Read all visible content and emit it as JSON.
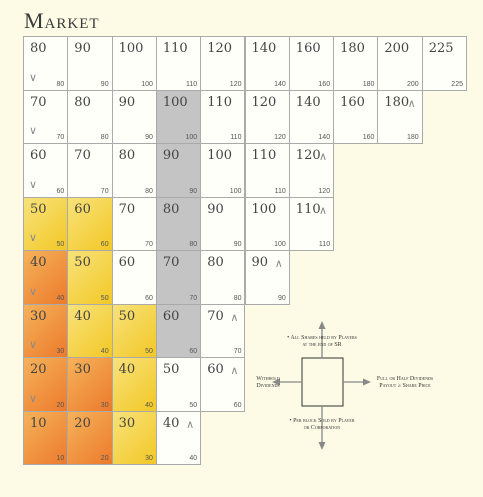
{
  "title": "Market",
  "rows": [
    [
      {
        "price": "80",
        "small": "80",
        "color": "white",
        "arrow": "down"
      },
      {
        "price": "90",
        "small": "90",
        "color": "white"
      },
      {
        "price": "100",
        "small": "100",
        "color": "white"
      },
      {
        "price": "110",
        "small": "110",
        "color": "white"
      },
      {
        "price": "120",
        "small": "120",
        "color": "white"
      },
      {
        "price": "140",
        "small": "140",
        "color": "white"
      },
      {
        "price": "160",
        "small": "160",
        "color": "white"
      },
      {
        "price": "180",
        "small": "180",
        "color": "white"
      },
      {
        "price": "200",
        "small": "200",
        "color": "white"
      },
      {
        "price": "225",
        "small": "225",
        "color": "white"
      }
    ],
    [
      {
        "price": "70",
        "small": "70",
        "color": "white",
        "arrow": "down"
      },
      {
        "price": "80",
        "small": "80",
        "color": "white"
      },
      {
        "price": "90",
        "small": "90",
        "color": "white"
      },
      {
        "price": "100",
        "small": "100",
        "color": "gray"
      },
      {
        "price": "110",
        "small": "110",
        "color": "white"
      },
      {
        "price": "120",
        "small": "120",
        "color": "white"
      },
      {
        "price": "140",
        "small": "140",
        "color": "white"
      },
      {
        "price": "160",
        "small": "160",
        "color": "white"
      },
      {
        "price": "180",
        "small": "180",
        "color": "white",
        "arrow": "up"
      }
    ],
    [
      {
        "price": "60",
        "small": "60",
        "color": "white",
        "arrow": "down"
      },
      {
        "price": "70",
        "small": "70",
        "color": "white"
      },
      {
        "price": "80",
        "small": "80",
        "color": "white"
      },
      {
        "price": "90",
        "small": "90",
        "color": "gray"
      },
      {
        "price": "100",
        "small": "100",
        "color": "white"
      },
      {
        "price": "110",
        "small": "110",
        "color": "white"
      },
      {
        "price": "120",
        "small": "120",
        "color": "white",
        "arrow": "up"
      }
    ],
    [
      {
        "price": "50",
        "small": "50",
        "color": "yellow",
        "arrow": "down"
      },
      {
        "price": "60",
        "small": "60",
        "color": "yellow"
      },
      {
        "price": "70",
        "small": "70",
        "color": "white"
      },
      {
        "price": "80",
        "small": "80",
        "color": "gray"
      },
      {
        "price": "90",
        "small": "90",
        "color": "white"
      },
      {
        "price": "100",
        "small": "100",
        "color": "white"
      },
      {
        "price": "110",
        "small": "110",
        "color": "white",
        "arrow": "up"
      }
    ],
    [
      {
        "price": "40",
        "small": "40",
        "color": "orange",
        "arrow": "down"
      },
      {
        "price": "50",
        "small": "50",
        "color": "yellow"
      },
      {
        "price": "60",
        "small": "60",
        "color": "white"
      },
      {
        "price": "70",
        "small": "70",
        "color": "gray"
      },
      {
        "price": "80",
        "small": "80",
        "color": "white"
      },
      {
        "price": "90",
        "small": "90",
        "color": "white",
        "arrow": "up"
      }
    ],
    [
      {
        "price": "30",
        "small": "30",
        "color": "orange",
        "arrow": "down"
      },
      {
        "price": "40",
        "small": "40",
        "color": "yellow"
      },
      {
        "price": "50",
        "small": "50",
        "color": "yellow"
      },
      {
        "price": "60",
        "small": "60",
        "color": "gray"
      },
      {
        "price": "70",
        "small": "70",
        "color": "white",
        "arrow": "up"
      }
    ],
    [
      {
        "price": "20",
        "small": "20",
        "color": "orange",
        "arrow": "down"
      },
      {
        "price": "30",
        "small": "30",
        "color": "orange"
      },
      {
        "price": "40",
        "small": "40",
        "color": "yellow"
      },
      {
        "price": "50",
        "small": "50",
        "color": "white"
      },
      {
        "price": "60",
        "small": "60",
        "color": "white",
        "arrow": "up"
      }
    ],
    [
      {
        "price": "10",
        "small": "10",
        "color": "orange"
      },
      {
        "price": "20",
        "small": "20",
        "color": "orange"
      },
      {
        "price": "30",
        "small": "30",
        "color": "yellow"
      },
      {
        "price": "40",
        "small": "40",
        "color": "white",
        "arrow": "up"
      }
    ]
  ],
  "legend": {
    "up": [
      "• All Shares held by Players",
      "at the end of SR"
    ],
    "left": [
      "Withhold",
      "Dividends"
    ],
    "right": [
      "Full or Half Dividends",
      "Payout ≥ Share Price"
    ],
    "down": [
      "• Per block Sold by Player",
      "or Corporation"
    ]
  },
  "icons": {
    "up": "arrow-up-icon",
    "down": "arrow-down-icon"
  }
}
